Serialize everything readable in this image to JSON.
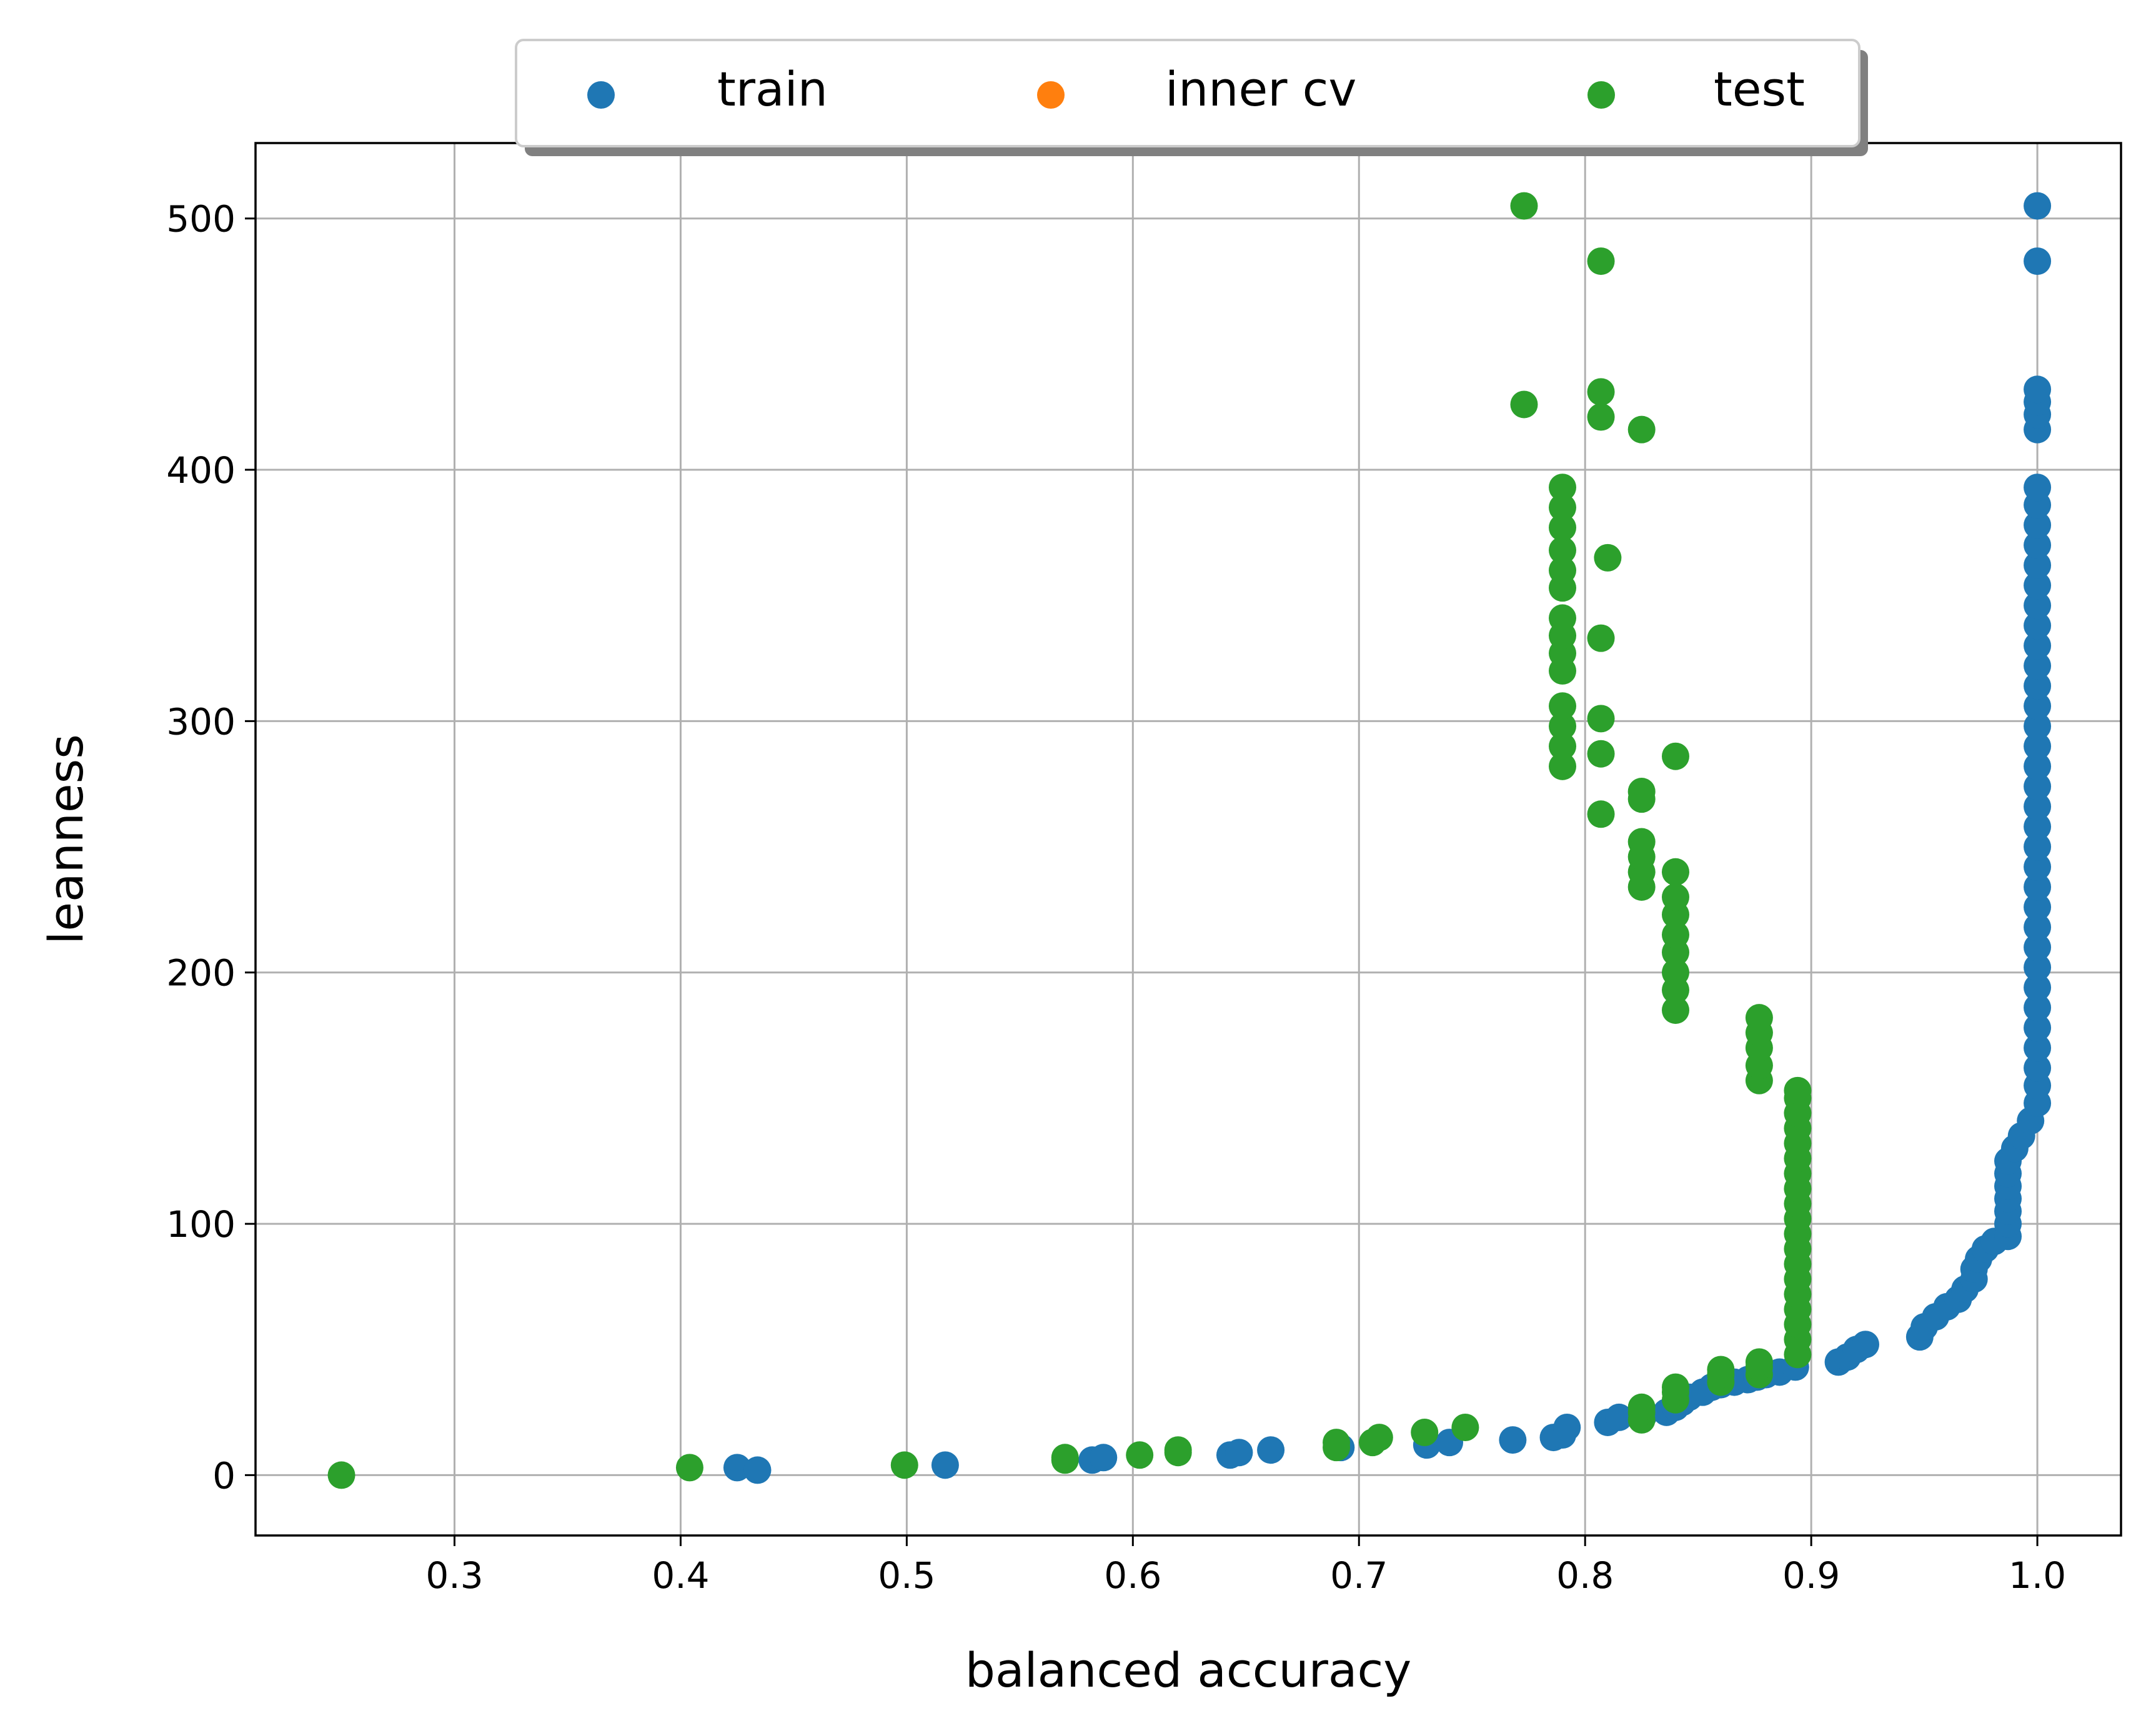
{
  "chart_data": {
    "type": "scatter",
    "xlabel": "balanced accuracy",
    "ylabel": "leanness",
    "xlim": [
      0.212,
      1.037
    ],
    "ylim": [
      -24,
      530
    ],
    "xticks": [
      0.3,
      0.4,
      0.5,
      0.6,
      0.7,
      0.8,
      0.9,
      1.0
    ],
    "xtick_labels": [
      "0.3",
      "0.4",
      "0.5",
      "0.6",
      "0.7",
      "0.8",
      "0.9",
      "1.0"
    ],
    "yticks": [
      0,
      100,
      200,
      300,
      400,
      500
    ],
    "ytick_labels": [
      "0",
      "100",
      "200",
      "300",
      "400",
      "500"
    ],
    "grid": true,
    "legend": {
      "placement": "top-center",
      "columns": 3
    },
    "series": [
      {
        "name": "train",
        "color": "#1f77b4",
        "points": [
          [
            0.425,
            3
          ],
          [
            0.434,
            2
          ],
          [
            0.517,
            4
          ],
          [
            0.582,
            6
          ],
          [
            0.587,
            7
          ],
          [
            0.643,
            8
          ],
          [
            0.647,
            9
          ],
          [
            0.661,
            10
          ],
          [
            0.692,
            11
          ],
          [
            0.73,
            12
          ],
          [
            0.74,
            13
          ],
          [
            0.768,
            14
          ],
          [
            0.786,
            15
          ],
          [
            0.79,
            16
          ],
          [
            0.792,
            19
          ],
          [
            0.81,
            21
          ],
          [
            0.815,
            23
          ],
          [
            0.826,
            24
          ],
          [
            0.836,
            25
          ],
          [
            0.84,
            27
          ],
          [
            0.843,
            29
          ],
          [
            0.846,
            31
          ],
          [
            0.852,
            33
          ],
          [
            0.856,
            35
          ],
          [
            0.86,
            36
          ],
          [
            0.866,
            37
          ],
          [
            0.872,
            38
          ],
          [
            0.876,
            39
          ],
          [
            0.88,
            40
          ],
          [
            0.886,
            41
          ],
          [
            0.893,
            43
          ],
          [
            0.912,
            45
          ],
          [
            0.916,
            47
          ],
          [
            0.92,
            50
          ],
          [
            0.924,
            52
          ],
          [
            0.948,
            55
          ],
          [
            0.95,
            59
          ],
          [
            0.955,
            63
          ],
          [
            0.96,
            67
          ],
          [
            0.965,
            70
          ],
          [
            0.968,
            74
          ],
          [
            0.972,
            78
          ],
          [
            0.972,
            82
          ],
          [
            0.974,
            86
          ],
          [
            0.977,
            90
          ],
          [
            0.981,
            93
          ],
          [
            0.987,
            95
          ],
          [
            0.987,
            100
          ],
          [
            0.987,
            105
          ],
          [
            0.987,
            110
          ],
          [
            0.987,
            115
          ],
          [
            0.987,
            120
          ],
          [
            0.987,
            125
          ],
          [
            0.99,
            130
          ],
          [
            0.993,
            135
          ],
          [
            0.997,
            141
          ],
          [
            1.0,
            148
          ],
          [
            1.0,
            155
          ],
          [
            1.0,
            162
          ],
          [
            1.0,
            170
          ],
          [
            1.0,
            178
          ],
          [
            1.0,
            186
          ],
          [
            1.0,
            194
          ],
          [
            1.0,
            202
          ],
          [
            1.0,
            210
          ],
          [
            1.0,
            218
          ],
          [
            1.0,
            226
          ],
          [
            1.0,
            234
          ],
          [
            1.0,
            242
          ],
          [
            1.0,
            250
          ],
          [
            1.0,
            258
          ],
          [
            1.0,
            266
          ],
          [
            1.0,
            274
          ],
          [
            1.0,
            282
          ],
          [
            1.0,
            290
          ],
          [
            1.0,
            298
          ],
          [
            1.0,
            306
          ],
          [
            1.0,
            314
          ],
          [
            1.0,
            322
          ],
          [
            1.0,
            330
          ],
          [
            1.0,
            338
          ],
          [
            1.0,
            346
          ],
          [
            1.0,
            354
          ],
          [
            1.0,
            362
          ],
          [
            1.0,
            370
          ],
          [
            1.0,
            378
          ],
          [
            1.0,
            386
          ],
          [
            1.0,
            393
          ],
          [
            1.0,
            416
          ],
          [
            1.0,
            422
          ],
          [
            1.0,
            427
          ],
          [
            1.0,
            432
          ],
          [
            1.0,
            483
          ],
          [
            1.0,
            505
          ]
        ]
      },
      {
        "name": "inner cv",
        "color": "#ff7f0e",
        "points": []
      },
      {
        "name": "test",
        "color": "#2ca02c",
        "points": [
          [
            0.25,
            0
          ],
          [
            0.404,
            3
          ],
          [
            0.499,
            4
          ],
          [
            0.57,
            6
          ],
          [
            0.57,
            7
          ],
          [
            0.603,
            8
          ],
          [
            0.62,
            9
          ],
          [
            0.62,
            10
          ],
          [
            0.69,
            11
          ],
          [
            0.69,
            13
          ],
          [
            0.706,
            13
          ],
          [
            0.709,
            15
          ],
          [
            0.729,
            17
          ],
          [
            0.747,
            19
          ],
          [
            0.825,
            22
          ],
          [
            0.825,
            25
          ],
          [
            0.825,
            27
          ],
          [
            0.84,
            30
          ],
          [
            0.84,
            33
          ],
          [
            0.84,
            35
          ],
          [
            0.86,
            37
          ],
          [
            0.86,
            40
          ],
          [
            0.86,
            42
          ],
          [
            0.877,
            40
          ],
          [
            0.877,
            43
          ],
          [
            0.877,
            45
          ],
          [
            0.894,
            48
          ],
          [
            0.894,
            54
          ],
          [
            0.894,
            60
          ],
          [
            0.894,
            66
          ],
          [
            0.894,
            72
          ],
          [
            0.894,
            78
          ],
          [
            0.894,
            84
          ],
          [
            0.894,
            90
          ],
          [
            0.894,
            96
          ],
          [
            0.894,
            102
          ],
          [
            0.894,
            108
          ],
          [
            0.894,
            114
          ],
          [
            0.894,
            120
          ],
          [
            0.894,
            126
          ],
          [
            0.894,
            132
          ],
          [
            0.894,
            138
          ],
          [
            0.894,
            144
          ],
          [
            0.894,
            150
          ],
          [
            0.894,
            153
          ],
          [
            0.877,
            157
          ],
          [
            0.877,
            163
          ],
          [
            0.877,
            170
          ],
          [
            0.877,
            176
          ],
          [
            0.877,
            182
          ],
          [
            0.84,
            185
          ],
          [
            0.84,
            193
          ],
          [
            0.84,
            200
          ],
          [
            0.84,
            208
          ],
          [
            0.84,
            215
          ],
          [
            0.84,
            223
          ],
          [
            0.84,
            230
          ],
          [
            0.84,
            240
          ],
          [
            0.825,
            234
          ],
          [
            0.825,
            240
          ],
          [
            0.825,
            246
          ],
          [
            0.825,
            252
          ],
          [
            0.825,
            269
          ],
          [
            0.825,
            272
          ],
          [
            0.807,
            263
          ],
          [
            0.807,
            287
          ],
          [
            0.807,
            301
          ],
          [
            0.807,
            333
          ],
          [
            0.84,
            286
          ],
          [
            0.81,
            365
          ],
          [
            0.825,
            416
          ],
          [
            0.807,
            421
          ],
          [
            0.807,
            431
          ],
          [
            0.807,
            483
          ],
          [
            0.773,
            426
          ],
          [
            0.773,
            505
          ],
          [
            0.79,
            282
          ],
          [
            0.79,
            290
          ],
          [
            0.79,
            298
          ],
          [
            0.79,
            306
          ],
          [
            0.79,
            320
          ],
          [
            0.79,
            327
          ],
          [
            0.79,
            334
          ],
          [
            0.79,
            341
          ],
          [
            0.79,
            353
          ],
          [
            0.79,
            360
          ],
          [
            0.79,
            368
          ],
          [
            0.79,
            377
          ],
          [
            0.79,
            385
          ],
          [
            0.79,
            393
          ]
        ]
      }
    ]
  }
}
